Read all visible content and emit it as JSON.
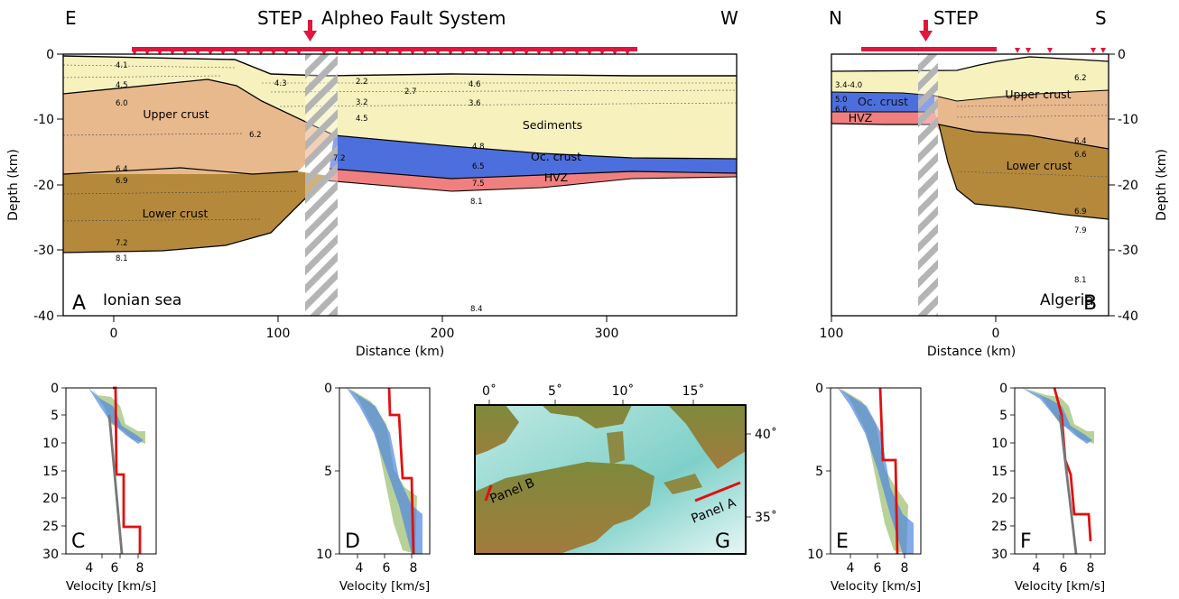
{
  "figure": {
    "panel_a": {
      "top_left": "E",
      "top_right": "W",
      "step_label": "STEP",
      "fault_label": "Alpheo Fault System",
      "letter": "A",
      "location": "Ionian sea",
      "xlabel": "Distance (km)",
      "ylabel": "Depth (km)",
      "xticks": [
        "0",
        "100",
        "200",
        "300"
      ],
      "yticks": [
        "0",
        "-10",
        "-20",
        "-30",
        "-40"
      ],
      "units": {
        "upper": "Upper crust",
        "sediments": "Sediments",
        "oc": "Oc. crust",
        "hvz": "HVZ",
        "lower": "Lower crust"
      },
      "velocities": [
        {
          "id": "a41",
          "text": "4.1"
        },
        {
          "id": "a45",
          "text": "4.5"
        },
        {
          "id": "a60",
          "text": "6.0"
        },
        {
          "id": "a43",
          "text": "4.3"
        },
        {
          "id": "a22",
          "text": "2.2"
        },
        {
          "id": "a27",
          "text": "2.7"
        },
        {
          "id": "a46",
          "text": "4.6"
        },
        {
          "id": "a32",
          "text": "3.2"
        },
        {
          "id": "a36",
          "text": "3.6"
        },
        {
          "id": "a45b",
          "text": "4.5"
        },
        {
          "id": "a62",
          "text": "6.2"
        },
        {
          "id": "a48",
          "text": "4.8"
        },
        {
          "id": "a72",
          "text": "7.2"
        },
        {
          "id": "a65",
          "text": "6.5"
        },
        {
          "id": "a75",
          "text": "7.5"
        },
        {
          "id": "a81",
          "text": "8.1"
        },
        {
          "id": "a64",
          "text": "6.4"
        },
        {
          "id": "a69",
          "text": "6.9"
        },
        {
          "id": "a72b",
          "text": "7.2"
        },
        {
          "id": "a81b",
          "text": "8.1"
        },
        {
          "id": "a84",
          "text": "8.4"
        }
      ]
    },
    "panel_b": {
      "top_left": "N",
      "top_right": "S",
      "step_label": "STEP",
      "letter": "B",
      "location": "Algeria",
      "xlabel": "Distance (km)",
      "ylabel": "Depth (km)",
      "xticks": [
        "100",
        "0"
      ],
      "yticks": [
        "0",
        "-10",
        "-20",
        "-30",
        "-40"
      ],
      "units": {
        "upper": "Upper crust",
        "oc": "Oc. crust",
        "hvz": "HVZ",
        "lower": "Lower crust"
      },
      "velocities": [
        {
          "id": "b34",
          "text": "3.4-4.0"
        },
        {
          "id": "b50",
          "text": "5.0"
        },
        {
          "id": "b66",
          "text": "6.6"
        },
        {
          "id": "b62",
          "text": "6.2"
        },
        {
          "id": "b64",
          "text": "6.4"
        },
        {
          "id": "b66b",
          "text": "6.6"
        },
        {
          "id": "b69",
          "text": "6.9"
        },
        {
          "id": "b79",
          "text": "7.9"
        },
        {
          "id": "b81",
          "text": "8.1"
        }
      ]
    },
    "profiles": {
      "xlabel": "Velocity [km/s]",
      "xticks": [
        "4",
        "6",
        "8"
      ],
      "c": {
        "letter": "C",
        "yticks": [
          "0",
          "5",
          "10",
          "15",
          "20",
          "25",
          "30"
        ]
      },
      "d": {
        "letter": "D",
        "yticks": [
          "0",
          "5",
          "10"
        ]
      },
      "e": {
        "letter": "E",
        "yticks": [
          "0",
          "5",
          "10"
        ]
      },
      "f": {
        "letter": "F",
        "yticks": [
          "0",
          "5",
          "10",
          "15",
          "20",
          "25",
          "30"
        ]
      }
    },
    "map": {
      "letter": "G",
      "lon_ticks": [
        "0˚",
        "5˚",
        "10˚",
        "15˚"
      ],
      "lat_ticks": [
        "40˚",
        "35˚"
      ],
      "line_a": "Panel A",
      "line_b": "Panel B"
    },
    "colors": {
      "sediments": "#f6f1bd",
      "upper_crust": "#e9b98e",
      "lower_crust": "#b5893b",
      "oceanic_crust": "#4d6fdd",
      "hvz": "#f08080",
      "step_arrow": "#e0163c",
      "model_line": "#e01010"
    }
  }
}
